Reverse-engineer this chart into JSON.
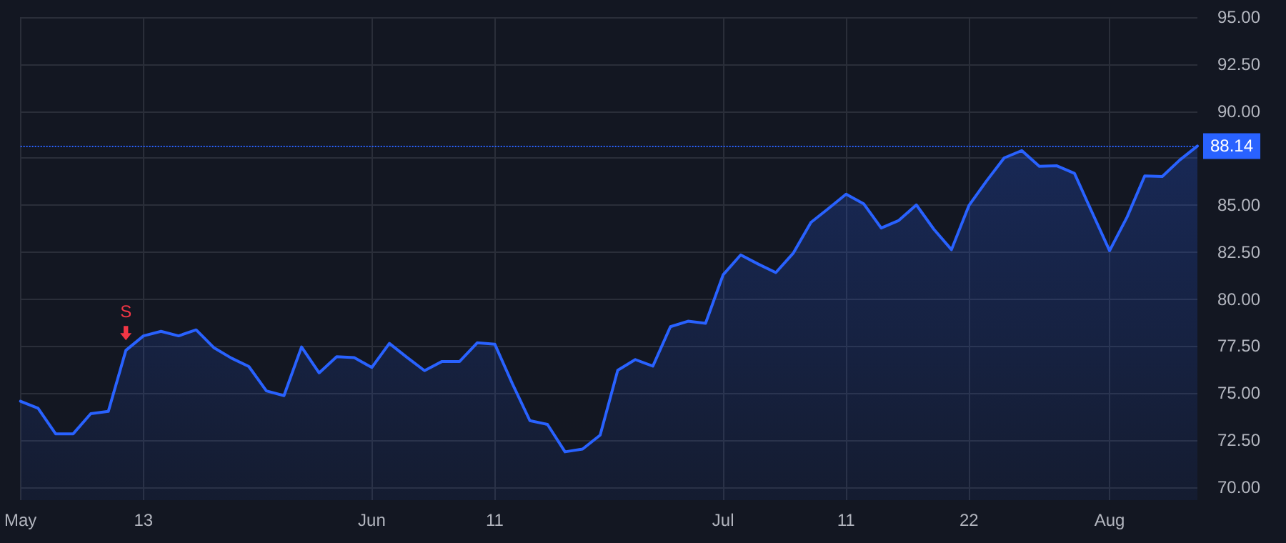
{
  "chart_data": {
    "type": "area",
    "categories": [
      "May",
      null,
      null,
      null,
      null,
      null,
      null,
      "13",
      null,
      null,
      null,
      null,
      null,
      null,
      null,
      null,
      null,
      null,
      null,
      null,
      "Jun",
      null,
      null,
      null,
      null,
      null,
      null,
      "11",
      null,
      null,
      null,
      null,
      null,
      null,
      null,
      null,
      null,
      null,
      null,
      null,
      "Jul",
      null,
      null,
      null,
      null,
      null,
      null,
      "11",
      null,
      null,
      null,
      null,
      null,
      null,
      "22",
      null,
      null,
      null,
      null,
      null,
      null,
      null,
      "Aug",
      null,
      null,
      null,
      null,
      null
    ],
    "series": [
      {
        "color": "#2962ff",
        "values": [
          74.56,
          74.19,
          72.83,
          72.83,
          73.9,
          74.02,
          77.27,
          78.04,
          78.28,
          78.04,
          78.36,
          77.42,
          76.86,
          76.41,
          75.11,
          74.86,
          77.45,
          76.07,
          76.93,
          76.88,
          76.36,
          77.64,
          76.9,
          76.19,
          76.68,
          76.68,
          77.67,
          77.6,
          75.5,
          73.53,
          73.33,
          71.87,
          72.02,
          72.76,
          76.21,
          76.78,
          76.43,
          78.53,
          78.82,
          78.71,
          81.29,
          82.35,
          81.86,
          81.41,
          82.45,
          84.08,
          84.82,
          85.58,
          85.07,
          83.78,
          84.18,
          85.01,
          83.71,
          82.63,
          84.99,
          86.29,
          87.51,
          87.9,
          87.06,
          87.09,
          86.69,
          84.62,
          82.57,
          84.37,
          86.55,
          86.52,
          87.4,
          88.14
        ]
      }
    ],
    "ylim": [
      69.3,
      95
    ],
    "yticks": [
      {
        "value": 70,
        "label": "70.00"
      },
      {
        "value": 72.5,
        "label": "72.50"
      },
      {
        "value": 75,
        "label": "75.00"
      },
      {
        "value": 77.5,
        "label": "77.50"
      },
      {
        "value": 80,
        "label": "80.00"
      },
      {
        "value": 82.5,
        "label": "82.50"
      },
      {
        "value": 85,
        "label": "85.00"
      },
      {
        "value": 87.5,
        "label": null
      },
      {
        "value": 90,
        "label": "90.00"
      },
      {
        "value": 92.5,
        "label": "92.50"
      },
      {
        "value": 95,
        "label": "95.00"
      }
    ],
    "ref_lines": [
      {
        "axis": "y",
        "value": 88.14,
        "label": "88.14",
        "color": "#2962ff",
        "line_style": "dotted"
      }
    ],
    "annotations": [
      {
        "text": "S",
        "y": 77.27
      }
    ],
    "grid": true,
    "marker": "none",
    "line_style": "solid"
  }
}
